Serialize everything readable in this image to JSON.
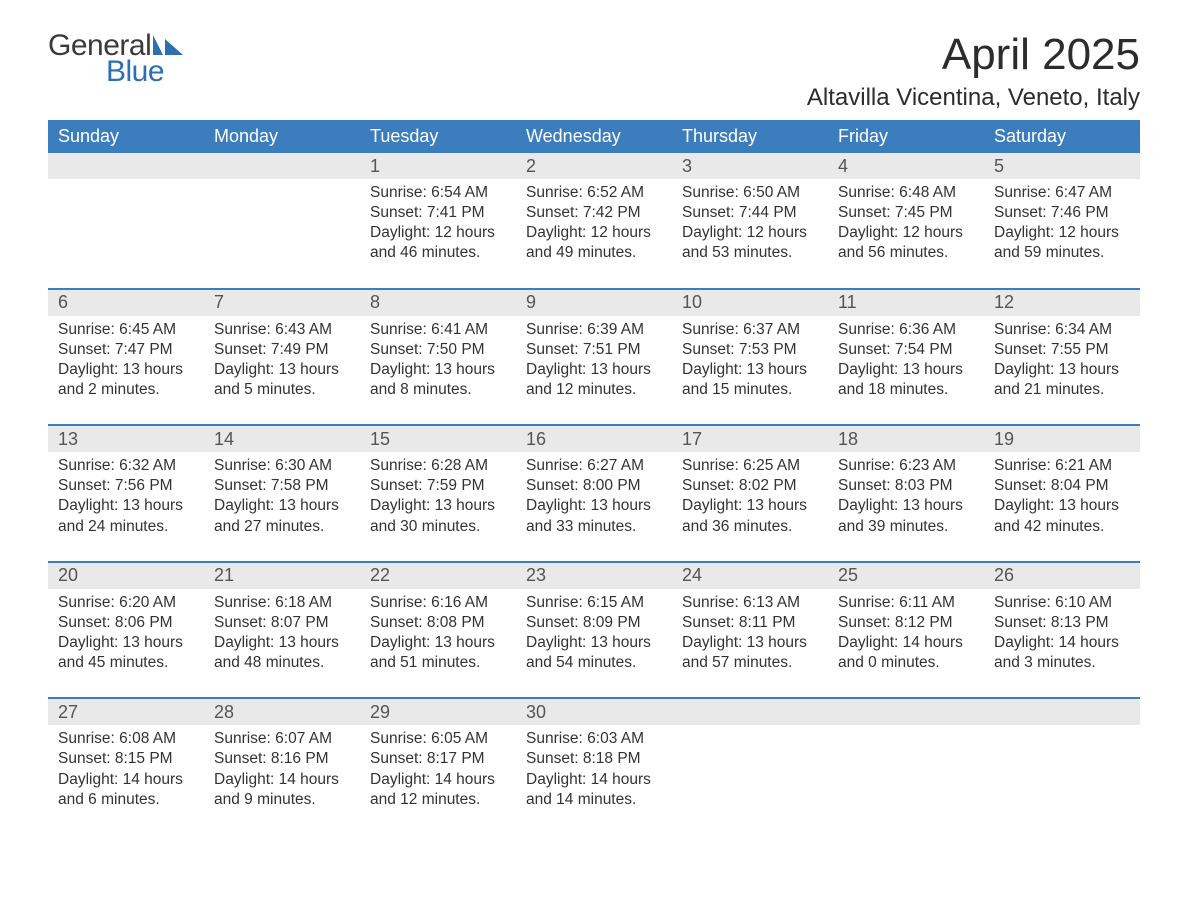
{
  "logo": {
    "word1": "General",
    "word2": "Blue",
    "mark_color": "#2d6fb0",
    "text_color": "#3a3a3a"
  },
  "title": "April 2025",
  "location": "Altavilla Vicentina, Veneto, Italy",
  "colors": {
    "header_bg": "#3b7dbd",
    "header_fg": "#ffffff",
    "daynum_bg": "#e9e9e9",
    "daynum_fg": "#555555",
    "body_fg": "#333333",
    "rule": "#3b7dbd",
    "page_bg": "#ffffff"
  },
  "typography": {
    "title_pt": 44,
    "location_pt": 24,
    "dow_pt": 18,
    "daynum_pt": 18,
    "body_pt": 15.5
  },
  "calendar": {
    "type": "table",
    "columns": [
      "Sunday",
      "Monday",
      "Tuesday",
      "Wednesday",
      "Thursday",
      "Friday",
      "Saturday"
    ],
    "labels": {
      "sunrise": "Sunrise",
      "sunset": "Sunset",
      "daylight": "Daylight"
    },
    "weeks": [
      [
        null,
        null,
        {
          "n": "1",
          "sunrise": "6:54 AM",
          "sunset": "7:41 PM",
          "dl_h": "12",
          "dl_m": "46"
        },
        {
          "n": "2",
          "sunrise": "6:52 AM",
          "sunset": "7:42 PM",
          "dl_h": "12",
          "dl_m": "49"
        },
        {
          "n": "3",
          "sunrise": "6:50 AM",
          "sunset": "7:44 PM",
          "dl_h": "12",
          "dl_m": "53"
        },
        {
          "n": "4",
          "sunrise": "6:48 AM",
          "sunset": "7:45 PM",
          "dl_h": "12",
          "dl_m": "56"
        },
        {
          "n": "5",
          "sunrise": "6:47 AM",
          "sunset": "7:46 PM",
          "dl_h": "12",
          "dl_m": "59"
        }
      ],
      [
        {
          "n": "6",
          "sunrise": "6:45 AM",
          "sunset": "7:47 PM",
          "dl_h": "13",
          "dl_m": "2"
        },
        {
          "n": "7",
          "sunrise": "6:43 AM",
          "sunset": "7:49 PM",
          "dl_h": "13",
          "dl_m": "5"
        },
        {
          "n": "8",
          "sunrise": "6:41 AM",
          "sunset": "7:50 PM",
          "dl_h": "13",
          "dl_m": "8"
        },
        {
          "n": "9",
          "sunrise": "6:39 AM",
          "sunset": "7:51 PM",
          "dl_h": "13",
          "dl_m": "12"
        },
        {
          "n": "10",
          "sunrise": "6:37 AM",
          "sunset": "7:53 PM",
          "dl_h": "13",
          "dl_m": "15"
        },
        {
          "n": "11",
          "sunrise": "6:36 AM",
          "sunset": "7:54 PM",
          "dl_h": "13",
          "dl_m": "18"
        },
        {
          "n": "12",
          "sunrise": "6:34 AM",
          "sunset": "7:55 PM",
          "dl_h": "13",
          "dl_m": "21"
        }
      ],
      [
        {
          "n": "13",
          "sunrise": "6:32 AM",
          "sunset": "7:56 PM",
          "dl_h": "13",
          "dl_m": "24"
        },
        {
          "n": "14",
          "sunrise": "6:30 AM",
          "sunset": "7:58 PM",
          "dl_h": "13",
          "dl_m": "27"
        },
        {
          "n": "15",
          "sunrise": "6:28 AM",
          "sunset": "7:59 PM",
          "dl_h": "13",
          "dl_m": "30"
        },
        {
          "n": "16",
          "sunrise": "6:27 AM",
          "sunset": "8:00 PM",
          "dl_h": "13",
          "dl_m": "33"
        },
        {
          "n": "17",
          "sunrise": "6:25 AM",
          "sunset": "8:02 PM",
          "dl_h": "13",
          "dl_m": "36"
        },
        {
          "n": "18",
          "sunrise": "6:23 AM",
          "sunset": "8:03 PM",
          "dl_h": "13",
          "dl_m": "39"
        },
        {
          "n": "19",
          "sunrise": "6:21 AM",
          "sunset": "8:04 PM",
          "dl_h": "13",
          "dl_m": "42"
        }
      ],
      [
        {
          "n": "20",
          "sunrise": "6:20 AM",
          "sunset": "8:06 PM",
          "dl_h": "13",
          "dl_m": "45"
        },
        {
          "n": "21",
          "sunrise": "6:18 AM",
          "sunset": "8:07 PM",
          "dl_h": "13",
          "dl_m": "48"
        },
        {
          "n": "22",
          "sunrise": "6:16 AM",
          "sunset": "8:08 PM",
          "dl_h": "13",
          "dl_m": "51"
        },
        {
          "n": "23",
          "sunrise": "6:15 AM",
          "sunset": "8:09 PM",
          "dl_h": "13",
          "dl_m": "54"
        },
        {
          "n": "24",
          "sunrise": "6:13 AM",
          "sunset": "8:11 PM",
          "dl_h": "13",
          "dl_m": "57"
        },
        {
          "n": "25",
          "sunrise": "6:11 AM",
          "sunset": "8:12 PM",
          "dl_h": "14",
          "dl_m": "0"
        },
        {
          "n": "26",
          "sunrise": "6:10 AM",
          "sunset": "8:13 PM",
          "dl_h": "14",
          "dl_m": "3"
        }
      ],
      [
        {
          "n": "27",
          "sunrise": "6:08 AM",
          "sunset": "8:15 PM",
          "dl_h": "14",
          "dl_m": "6"
        },
        {
          "n": "28",
          "sunrise": "6:07 AM",
          "sunset": "8:16 PM",
          "dl_h": "14",
          "dl_m": "9"
        },
        {
          "n": "29",
          "sunrise": "6:05 AM",
          "sunset": "8:17 PM",
          "dl_h": "14",
          "dl_m": "12"
        },
        {
          "n": "30",
          "sunrise": "6:03 AM",
          "sunset": "8:18 PM",
          "dl_h": "14",
          "dl_m": "14"
        },
        null,
        null,
        null
      ]
    ]
  }
}
